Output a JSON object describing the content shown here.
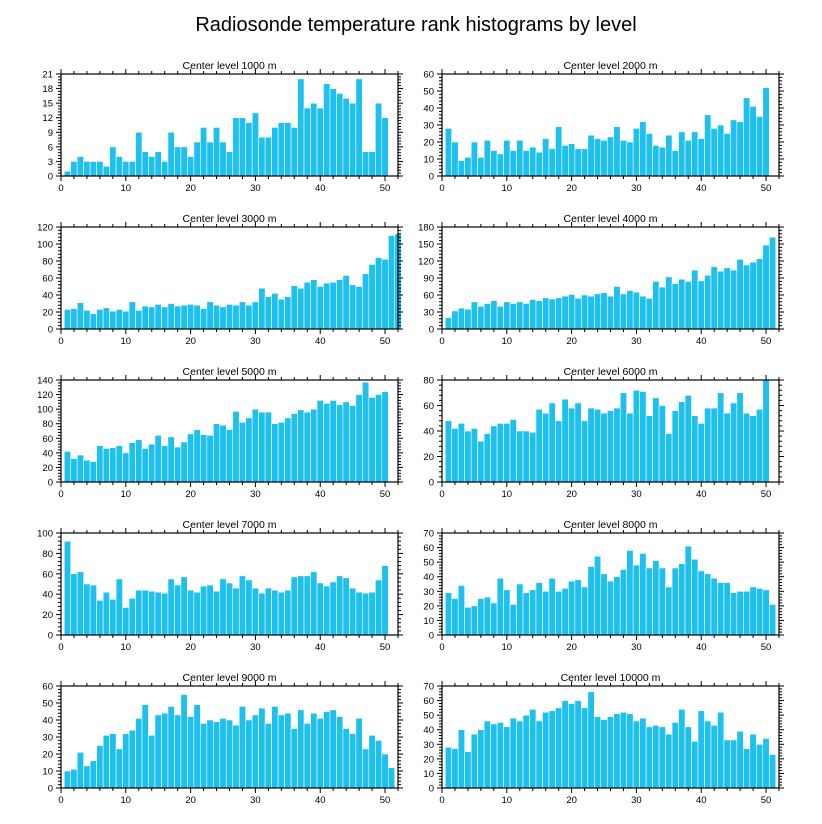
{
  "title": "Radiosonde temperature rank histograms by level",
  "colors": {
    "bar": "#1ec0f0",
    "axis": "#000000",
    "background": "#ffffff"
  },
  "chart_data": [
    {
      "type": "bar",
      "title": "Center level 1000 m",
      "x_ticks": [
        0,
        10,
        20,
        30,
        40,
        50
      ],
      "x_range": [
        0,
        52
      ],
      "y_ticks": [
        0,
        3,
        6,
        9,
        12,
        15,
        18,
        21
      ],
      "ylim": [
        0,
        21
      ],
      "values": [
        1,
        3,
        4,
        3,
        3,
        3,
        2,
        6,
        4,
        3,
        3,
        9,
        5,
        4,
        5,
        3,
        9,
        6,
        6,
        4,
        7,
        10,
        7,
        10,
        7,
        5,
        12,
        12,
        11,
        13,
        8,
        8,
        10,
        11,
        11,
        10,
        20,
        14,
        15,
        14,
        19,
        18,
        17,
        16,
        15,
        20,
        5,
        5,
        15,
        12
      ]
    },
    {
      "type": "bar",
      "title": "Center level 2000 m",
      "x_ticks": [
        0,
        10,
        20,
        30,
        40,
        50
      ],
      "x_range": [
        0,
        52
      ],
      "y_ticks": [
        0,
        10,
        20,
        30,
        40,
        50,
        60
      ],
      "ylim": [
        0,
        60
      ],
      "values": [
        28,
        20,
        9,
        11,
        20,
        11,
        21,
        15,
        13,
        21,
        15,
        21,
        15,
        17,
        14,
        22,
        16,
        29,
        18,
        19,
        16,
        16,
        24,
        22,
        21,
        23,
        29,
        21,
        20,
        28,
        32,
        25,
        18,
        17,
        24,
        15,
        26,
        21,
        26,
        22,
        36,
        28,
        30,
        25,
        33,
        32,
        46,
        41,
        35,
        52
      ]
    },
    {
      "type": "bar",
      "title": "Center level 3000 m",
      "x_ticks": [
        0,
        10,
        20,
        30,
        40,
        50
      ],
      "x_range": [
        0,
        52
      ],
      "y_ticks": [
        0,
        20,
        40,
        60,
        80,
        100,
        120
      ],
      "ylim": [
        0,
        120
      ],
      "values": [
        23,
        24,
        31,
        22,
        18,
        23,
        25,
        21,
        23,
        21,
        32,
        22,
        27,
        26,
        29,
        26,
        30,
        27,
        28,
        29,
        28,
        24,
        32,
        28,
        26,
        29,
        28,
        32,
        28,
        32,
        48,
        38,
        42,
        35,
        38,
        51,
        48,
        55,
        58,
        50,
        54,
        55,
        58,
        63,
        52,
        50,
        65,
        76,
        84,
        82,
        110,
        112
      ]
    },
    {
      "type": "bar",
      "title": "Center level 4000 m",
      "x_ticks": [
        0,
        10,
        20,
        30,
        40,
        50
      ],
      "x_range": [
        0,
        52
      ],
      "y_ticks": [
        0,
        30,
        60,
        90,
        120,
        150,
        180
      ],
      "ylim": [
        0,
        180
      ],
      "values": [
        20,
        32,
        37,
        35,
        48,
        40,
        45,
        50,
        40,
        48,
        45,
        48,
        45,
        52,
        50,
        55,
        53,
        55,
        58,
        61,
        54,
        60,
        58,
        62,
        64,
        58,
        75,
        62,
        68,
        65,
        58,
        54,
        84,
        74,
        92,
        80,
        88,
        84,
        104,
        85,
        95,
        110,
        102,
        108,
        104,
        123,
        113,
        118,
        124,
        148,
        162
      ]
    },
    {
      "type": "bar",
      "title": "Center level 5000 m",
      "x_ticks": [
        0,
        10,
        20,
        30,
        40,
        50
      ],
      "x_range": [
        0,
        52
      ],
      "y_ticks": [
        0,
        20,
        40,
        60,
        80,
        100,
        120,
        140
      ],
      "ylim": [
        0,
        140
      ],
      "values": [
        42,
        32,
        37,
        30,
        28,
        50,
        46,
        47,
        50,
        40,
        54,
        58,
        46,
        52,
        64,
        50,
        62,
        48,
        55,
        66,
        72,
        65,
        64,
        80,
        78,
        72,
        97,
        82,
        88,
        100,
        96,
        96,
        80,
        82,
        88,
        94,
        99,
        96,
        100,
        112,
        108,
        112,
        106,
        110,
        105,
        120,
        137,
        116,
        120,
        124
      ]
    },
    {
      "type": "bar",
      "title": "Center level 6000 m",
      "x_ticks": [
        0,
        10,
        20,
        30,
        40,
        50
      ],
      "x_range": [
        0,
        52
      ],
      "y_ticks": [
        0,
        20,
        40,
        60,
        80
      ],
      "ylim": [
        0,
        80
      ],
      "values": [
        48,
        42,
        46,
        40,
        42,
        32,
        38,
        44,
        46,
        46,
        49,
        40,
        40,
        39,
        57,
        54,
        62,
        48,
        65,
        58,
        62,
        48,
        58,
        57,
        54,
        56,
        58,
        70,
        54,
        72,
        71,
        52,
        66,
        60,
        38,
        56,
        63,
        68,
        52,
        46,
        58,
        58,
        70,
        54,
        62,
        70,
        54,
        52,
        57,
        80
      ]
    },
    {
      "type": "bar",
      "title": "Center level 7000 m",
      "x_ticks": [
        0,
        10,
        20,
        30,
        40,
        50
      ],
      "x_range": [
        0,
        52
      ],
      "y_ticks": [
        0,
        20,
        40,
        60,
        80,
        100
      ],
      "ylim": [
        0,
        100
      ],
      "values": [
        92,
        60,
        62,
        50,
        49,
        34,
        42,
        35,
        55,
        27,
        36,
        44,
        44,
        43,
        42,
        41,
        55,
        49,
        57,
        44,
        42,
        48,
        49,
        43,
        55,
        51,
        46,
        58,
        54,
        46,
        41,
        46,
        44,
        42,
        44,
        57,
        58,
        58,
        62,
        51,
        48,
        52,
        58,
        56,
        46,
        42,
        41,
        42,
        54,
        68
      ]
    },
    {
      "type": "bar",
      "title": "Center level 8000 m",
      "x_ticks": [
        0,
        10,
        20,
        30,
        40,
        50
      ],
      "x_range": [
        0,
        52
      ],
      "y_ticks": [
        0,
        10,
        20,
        30,
        40,
        50,
        60,
        70
      ],
      "ylim": [
        0,
        70
      ],
      "values": [
        29,
        25,
        34,
        19,
        20,
        25,
        26,
        22,
        39,
        31,
        21,
        35,
        29,
        31,
        36,
        30,
        39,
        30,
        32,
        37,
        38,
        33,
        47,
        54,
        42,
        37,
        40,
        45,
        58,
        48,
        56,
        46,
        51,
        46,
        33,
        46,
        49,
        61,
        52,
        44,
        42,
        39,
        36,
        36,
        29,
        30,
        30,
        33,
        32,
        31,
        21
      ]
    },
    {
      "type": "bar",
      "title": "Center level 9000 m",
      "x_ticks": [
        0,
        10,
        20,
        30,
        40,
        50
      ],
      "x_range": [
        0,
        52
      ],
      "y_ticks": [
        0,
        10,
        20,
        30,
        40,
        50,
        60
      ],
      "ylim": [
        0,
        60
      ],
      "values": [
        10,
        11,
        21,
        13,
        16,
        25,
        31,
        32,
        23,
        32,
        34,
        41,
        49,
        31,
        43,
        44,
        48,
        43,
        55,
        42,
        49,
        38,
        40,
        39,
        41,
        40,
        37,
        48,
        40,
        43,
        47,
        38,
        48,
        43,
        44,
        35,
        46,
        38,
        44,
        41,
        45,
        46,
        42,
        35,
        32,
        41,
        23,
        31,
        28,
        20,
        12
      ]
    },
    {
      "type": "bar",
      "title": "Center level 10000 m",
      "x_ticks": [
        0,
        10,
        20,
        30,
        40,
        50
      ],
      "x_range": [
        0,
        52
      ],
      "y_ticks": [
        0,
        10,
        20,
        30,
        40,
        50,
        60,
        70
      ],
      "ylim": [
        0,
        70
      ],
      "values": [
        28,
        27,
        40,
        25,
        37,
        40,
        46,
        44,
        45,
        42,
        48,
        46,
        50,
        54,
        46,
        52,
        53,
        55,
        60,
        58,
        60,
        55,
        66,
        49,
        47,
        49,
        51,
        52,
        51,
        46,
        48,
        42,
        43,
        42,
        37,
        45,
        54,
        42,
        32,
        53,
        46,
        43,
        52,
        33,
        33,
        39,
        27,
        37,
        30,
        34,
        23
      ]
    }
  ]
}
